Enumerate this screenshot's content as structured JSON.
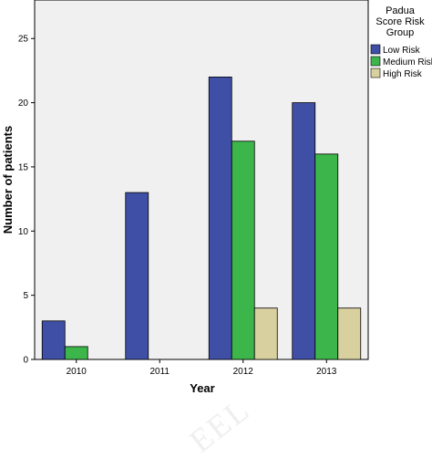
{
  "watermark_text": "EEL",
  "chart_data": {
    "type": "bar",
    "categories": [
      "2010",
      "2011",
      "2012",
      "2013"
    ],
    "series": [
      {
        "name": "Low Risk",
        "values": [
          3,
          13,
          22,
          20
        ],
        "color": "#3f4fa6"
      },
      {
        "name": "Medium Risk",
        "values": [
          1,
          0,
          17,
          16
        ],
        "color": "#3cb54a"
      },
      {
        "name": "High Risk",
        "values": [
          0,
          0,
          4,
          4
        ],
        "color": "#d9d09f"
      }
    ],
    "xlabel": "Year",
    "ylabel": "Number of patients",
    "ylim": [
      0,
      28
    ],
    "yticks": [
      0,
      5,
      10,
      15,
      20,
      25
    ],
    "grid": false,
    "plot_background": "#f0f0f0",
    "legend": {
      "title_lines": [
        "Padua",
        "Score Risk",
        "Group"
      ],
      "placement": "right"
    }
  }
}
